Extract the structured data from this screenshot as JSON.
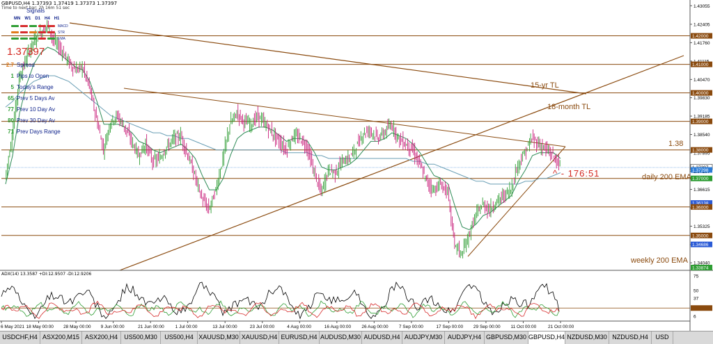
{
  "header": {
    "symbol_line": "GBPUSD,H4  1.37393 1.37419 1.37373 1.37397",
    "timer_line": "Time to next bar: 2h 16m 51 sec"
  },
  "signals": {
    "title": "Signals",
    "timeframes": [
      "MN",
      "W1",
      "D1",
      "H4",
      "H1"
    ],
    "rows": [
      {
        "name": "MACD",
        "colors": [
          "#2e9d33",
          "#d62b2b",
          "#2e9d33",
          "#d62b2b",
          "#d62b2b"
        ]
      },
      {
        "name": "STR",
        "colors": [
          "#e07a1c",
          "#d62b2b",
          "#e07a1c",
          "#d62b2b",
          "#d62b2b"
        ]
      },
      {
        "name": "EMA",
        "colors": [
          "#2e9d33",
          "#2e9d33",
          "#2e9d33",
          "#d62b2b",
          "#2e9d33"
        ]
      }
    ]
  },
  "current_price": "1.37397",
  "info_panel": [
    {
      "num": "2.7",
      "label": "Spread",
      "color": "#e07a1c"
    },
    {
      "num": "1",
      "label": "Pips to Open",
      "color": "#2e9d33"
    },
    {
      "num": "5",
      "label": "Today's Range",
      "color": "#2e9d33"
    },
    {
      "num": "65",
      "label": "Prev 5 Days Av",
      "color": "#2e9d33"
    },
    {
      "num": "77",
      "label": "Prev 10 Day Av",
      "color": "#2e9d33"
    },
    {
      "num": "80",
      "label": "Prev 30 Day Av",
      "color": "#2e9d33"
    },
    {
      "num": "71",
      "label": "Prev Days Range",
      "color": "#2e9d33"
    }
  ],
  "annotations": {
    "tl_15yr": "15-yr TL",
    "tl_18month": "18-month TL",
    "level_138": "1.38",
    "daily_ema": "daily 200 EMA",
    "weekly_ema": "weekly 200 EMA",
    "angle": "^ - 176:51"
  },
  "chart_data": {
    "type": "line",
    "title": "",
    "symbol": "GBPUSD,H4",
    "price_axis_ticks": [
      "1.43055",
      "1.42405",
      "1.41760",
      "1.41115",
      "1.40470",
      "1.39830",
      "1.39185",
      "1.38540",
      "1.37895",
      "1.37250",
      "1.36615",
      "1.35970",
      "1.35325",
      "1.34680",
      "1.34040"
    ],
    "horizontal_levels": [
      "1.42000",
      "1.41000",
      "1.40000",
      "1.39000",
      "1.38000",
      "1.37000",
      "1.36000",
      "1.35000"
    ],
    "price_tags": [
      {
        "value": "1.42000",
        "color": "#8a4a0e"
      },
      {
        "value": "1.41000",
        "color": "#8a4a0e"
      },
      {
        "value": "1.40000",
        "color": "#8a4a0e"
      },
      {
        "value": "1.39000",
        "color": "#8a4a0e"
      },
      {
        "value": "1.38000",
        "color": "#8a4a0e"
      },
      {
        "value": "1.37397",
        "color": "#ffffff"
      },
      {
        "value": "1.37298",
        "color": "#2b7bd6"
      },
      {
        "value": "1.37000",
        "color": "#2e9d33"
      },
      {
        "value": "1.36138",
        "color": "#2b5bd6"
      },
      {
        "value": "1.36000",
        "color": "#8a4a0e"
      },
      {
        "value": "1.35000",
        "color": "#8a4a0e"
      },
      {
        "value": "1.34686",
        "color": "#2b5bd6"
      },
      {
        "value": "1.33874",
        "color": "#2e9d33"
      }
    ],
    "x_labels": [
      "6 May 2021",
      "18 May 00:00",
      "28 May 00:00",
      "9 Jun 00:00",
      "21 Jun 00:00",
      "1 Jul 00:00",
      "13 Jul 00:00",
      "23 Jul 00:00",
      "4 Aug 00:00",
      "16 Aug 00:00",
      "26 Aug 00:00",
      "7 Sep 00:00",
      "17 Sep 00:00",
      "29 Sep 00:00",
      "11 Oct 00:00",
      "21 Oct 00:00"
    ],
    "close_path": [
      1.37,
      1.385,
      1.405,
      1.412,
      1.418,
      1.421,
      1.424,
      1.418,
      1.415,
      1.411,
      1.408,
      1.409,
      1.402,
      1.391,
      1.38,
      1.39,
      1.392,
      1.388,
      1.383,
      1.378,
      1.382,
      1.376,
      1.377,
      1.381,
      1.384,
      1.385,
      1.378,
      1.371,
      1.363,
      1.359,
      1.366,
      1.377,
      1.389,
      1.393,
      1.39,
      1.389,
      1.392,
      1.389,
      1.386,
      1.383,
      1.38,
      1.385,
      1.384,
      1.381,
      1.372,
      1.365,
      1.373,
      1.372,
      1.376,
      1.377,
      1.381,
      1.386,
      1.387,
      1.384,
      1.386,
      1.389,
      1.384,
      1.382,
      1.38,
      1.375,
      1.369,
      1.366,
      1.368,
      1.365,
      1.347,
      1.343,
      1.35,
      1.357,
      1.361,
      1.359,
      1.362,
      1.364,
      1.366,
      1.375,
      1.379,
      1.384,
      1.382,
      1.38,
      1.378,
      1.374
    ],
    "ema_short": [
      1.368,
      1.378,
      1.393,
      1.403,
      1.41,
      1.414,
      1.416,
      1.415,
      1.413,
      1.411,
      1.409,
      1.408,
      1.404,
      1.397,
      1.389,
      1.389,
      1.389,
      1.388,
      1.386,
      1.383,
      1.382,
      1.38,
      1.379,
      1.38,
      1.381,
      1.382,
      1.38,
      1.377,
      1.371,
      1.366,
      1.366,
      1.37,
      1.378,
      1.384,
      1.386,
      1.387,
      1.388,
      1.388,
      1.387,
      1.385,
      1.383,
      1.384,
      1.384,
      1.383,
      1.379,
      1.374,
      1.373,
      1.373,
      1.374,
      1.375,
      1.377,
      1.38,
      1.383,
      1.383,
      1.384,
      1.386,
      1.385,
      1.384,
      1.382,
      1.379,
      1.375,
      1.371,
      1.37,
      1.368,
      1.36,
      1.353,
      1.352,
      1.354,
      1.357,
      1.358,
      1.36,
      1.362,
      1.364,
      1.369,
      1.373,
      1.378,
      1.379,
      1.379,
      1.379,
      1.377
    ],
    "ema_long": [
      1.395,
      1.397,
      1.4,
      1.402,
      1.404,
      1.405,
      1.406,
      1.406,
      1.405,
      1.404,
      1.402,
      1.4,
      1.398,
      1.396,
      1.394,
      1.392,
      1.391,
      1.39,
      1.389,
      1.388,
      1.387,
      1.386,
      1.386,
      1.385,
      1.385,
      1.384,
      1.384,
      1.383,
      1.382,
      1.381,
      1.38,
      1.38,
      1.38,
      1.38,
      1.38,
      1.38,
      1.38,
      1.38,
      1.38,
      1.38,
      1.379,
      1.379,
      1.379,
      1.379,
      1.378,
      1.378,
      1.377,
      1.377,
      1.377,
      1.377,
      1.377,
      1.377,
      1.377,
      1.377,
      1.377,
      1.377,
      1.377,
      1.377,
      1.376,
      1.376,
      1.375,
      1.375,
      1.374,
      1.373,
      1.372,
      1.371,
      1.37,
      1.369,
      1.369,
      1.368,
      1.368,
      1.368,
      1.368,
      1.368,
      1.369,
      1.369,
      1.37,
      1.37,
      1.371,
      1.372
    ],
    "adx_panel": {
      "label": "ADX(14) 13.3587 +DI:12.9507 -DI:12.9206",
      "ticks": [
        "75",
        "50",
        "37",
        "20.0000",
        "6"
      ],
      "level": "20.0000"
    }
  },
  "tabs": [
    {
      "label": "USDCHF,H4",
      "active": false
    },
    {
      "label": "ASX200,M15",
      "active": false
    },
    {
      "label": "ASX200,H4",
      "active": false
    },
    {
      "label": "US500,M30",
      "active": false
    },
    {
      "label": "US500,H4",
      "active": false
    },
    {
      "label": "XAUUSD,M30",
      "active": false
    },
    {
      "label": "XAUUSD,H4",
      "active": false
    },
    {
      "label": "EURUSD,H4",
      "active": false
    },
    {
      "label": "AUDUSD,M30",
      "active": false
    },
    {
      "label": "AUDUSD,H4",
      "active": false
    },
    {
      "label": "AUDJPY,M30",
      "active": false
    },
    {
      "label": "AUDJPY,H4",
      "active": false
    },
    {
      "label": "GBPUSD,M30",
      "active": false
    },
    {
      "label": "GBPUSD,H4",
      "active": true
    },
    {
      "label": "NZDUSD,M30",
      "active": false
    },
    {
      "label": "NZDUSD,H4",
      "active": false
    },
    {
      "label": "USD",
      "active": false
    }
  ]
}
